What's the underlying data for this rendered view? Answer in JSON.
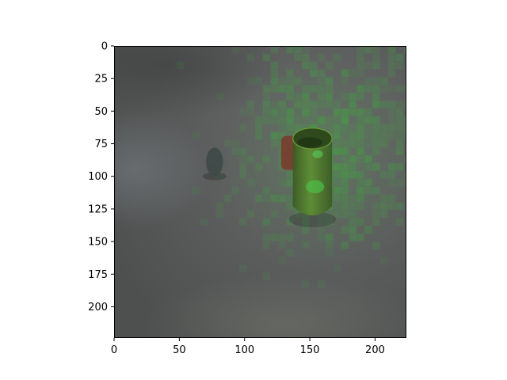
{
  "chart_data": {
    "type": "heatmap",
    "title": "",
    "xlabel": "",
    "ylabel": "",
    "xlim": [
      0,
      224
    ],
    "ylim": [
      224,
      0
    ],
    "x_ticks": [
      0,
      50,
      100,
      150,
      200
    ],
    "y_ticks": [
      0,
      25,
      50,
      75,
      100,
      125,
      150,
      175,
      200
    ],
    "x_tick_labels": [
      "0",
      "50",
      "100",
      "150",
      "200"
    ],
    "y_tick_labels": [
      "0",
      "25",
      "50",
      "75",
      "100",
      "125",
      "150",
      "175",
      "200"
    ],
    "grid": false,
    "legend": "none",
    "image": {
      "content": "grey scene photo with a green translucent cup and a small dark object, overlaid with a green patch-attention map",
      "background_color": "#5c5e5e",
      "overlay_color": "#3fa33f",
      "objects": [
        {
          "name": "cup",
          "center": [
            152,
            100
          ],
          "width": 30,
          "height": 58,
          "color": "#4d7a2a"
        },
        {
          "name": "red-handle",
          "center": [
            134,
            82
          ],
          "width": 12,
          "height": 26,
          "color": "#7a3a2a"
        },
        {
          "name": "small-object",
          "center": [
            77,
            89
          ],
          "width": 13,
          "height": 22,
          "color": "#3f4a48"
        }
      ]
    }
  }
}
